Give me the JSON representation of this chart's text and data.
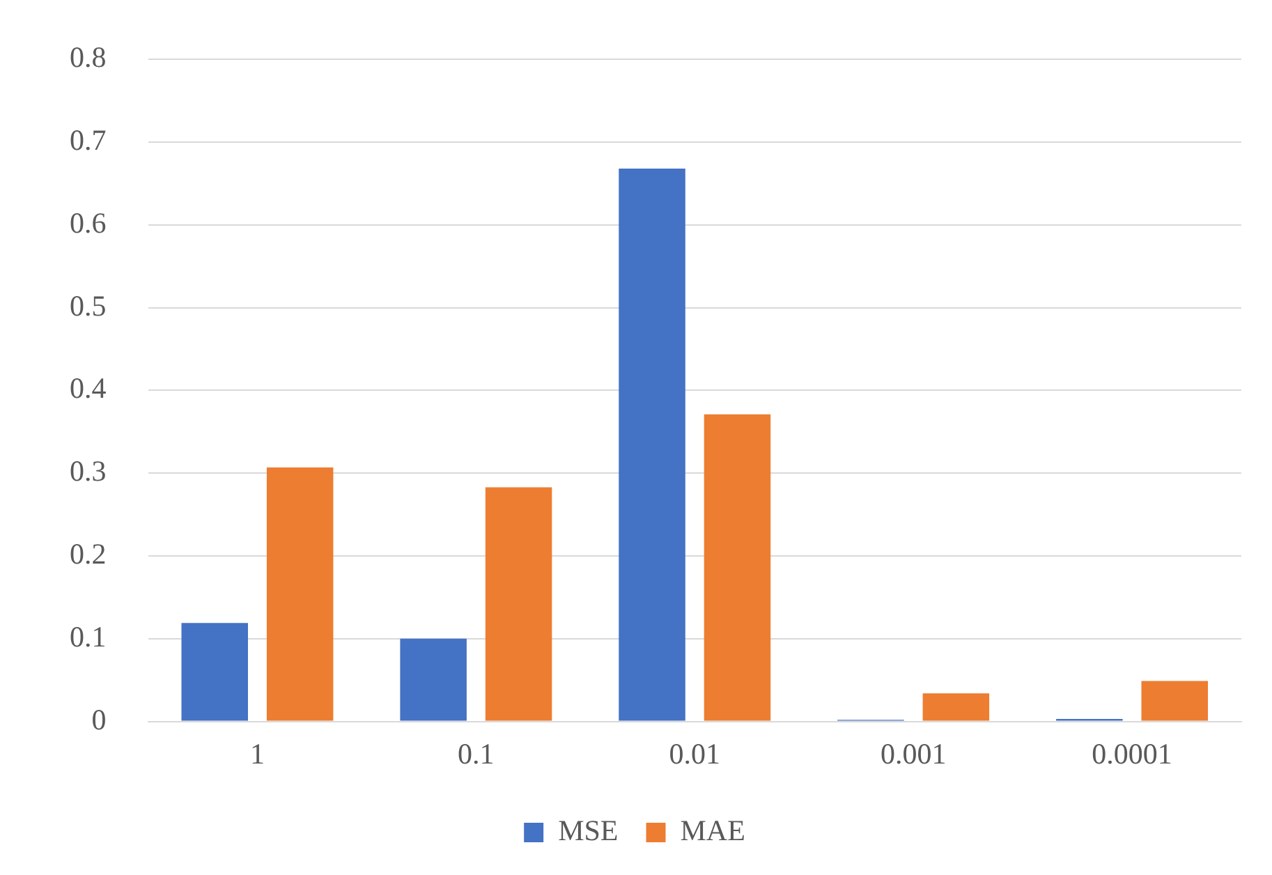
{
  "chart_data": {
    "type": "bar",
    "categories": [
      "1",
      "0.1",
      "0.01",
      "0.001",
      "0.0001"
    ],
    "series": [
      {
        "name": "MSE",
        "color": "#4472c4",
        "values": [
          0.119,
          0.1,
          0.668,
          0.002,
          0.003
        ]
      },
      {
        "name": "MAE",
        "color": "#ed7d31",
        "values": [
          0.307,
          0.283,
          0.371,
          0.034,
          0.049
        ]
      }
    ],
    "ylim": [
      0,
      0.8
    ],
    "yticks": [
      0,
      0.1,
      0.2,
      0.3,
      0.4,
      0.5,
      0.6,
      0.7,
      0.8
    ],
    "grid": "y",
    "legend": "bottom"
  }
}
